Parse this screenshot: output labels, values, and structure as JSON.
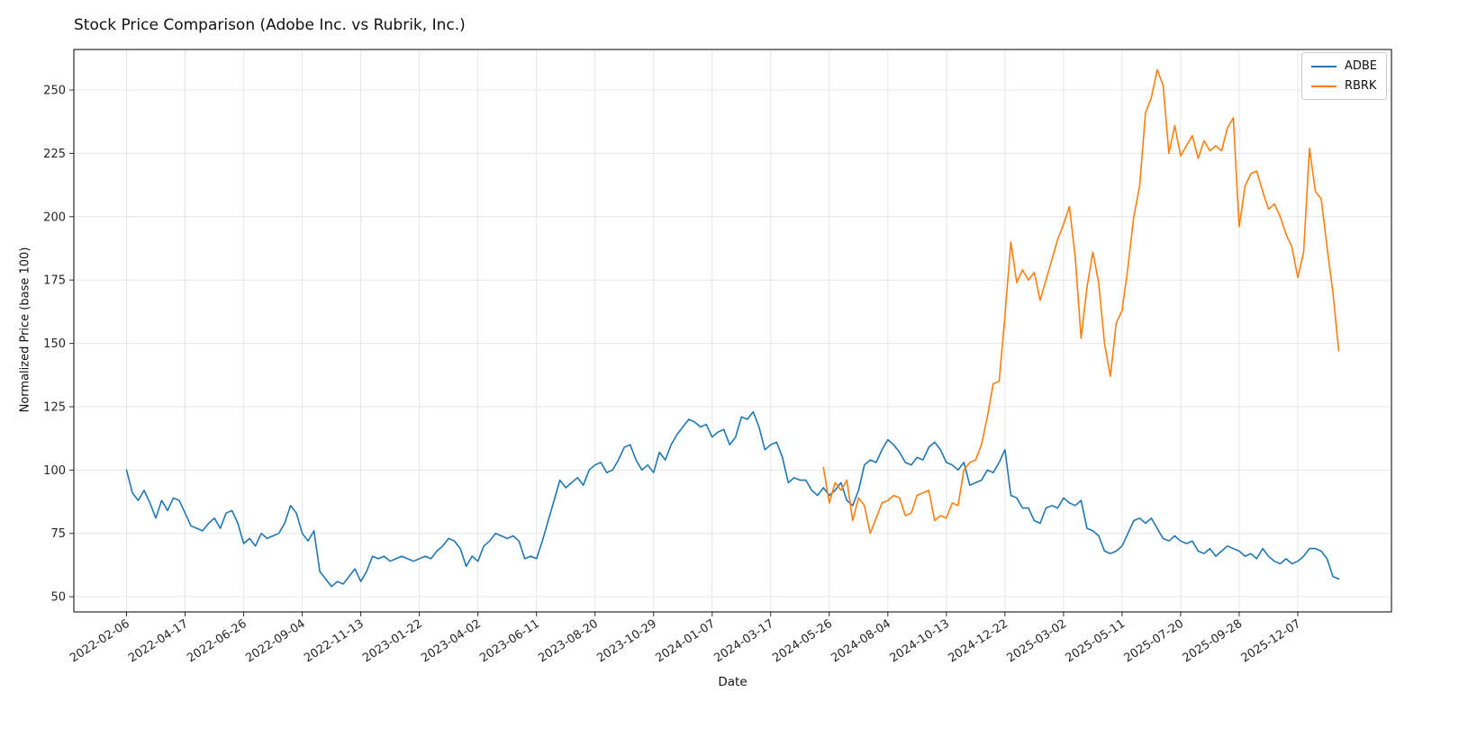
{
  "chart_data": {
    "type": "line",
    "title": "Stock Price Comparison (Adobe Inc. vs Rubrik, Inc.)",
    "xlabel": "Date",
    "ylabel": "Normalized Price (base 100)",
    "x_unit": "weeks_since_start",
    "x_start_date": "2022-02-06",
    "x_tick_interval_weeks": 10,
    "x_tick_labels": [
      "2022-02-06",
      "2022-04-17",
      "2022-06-26",
      "2022-09-04",
      "2022-11-13",
      "2023-01-22",
      "2023-04-02",
      "2023-06-11",
      "2023-08-20",
      "2023-10-29",
      "2024-01-07",
      "2024-03-17",
      "2024-05-26",
      "2024-08-04",
      "2024-10-13",
      "2024-12-22",
      "2025-03-02",
      "2025-05-11",
      "2025-07-20",
      "2025-09-28",
      "2025-12-07"
    ],
    "yticks": [
      50,
      75,
      100,
      125,
      150,
      175,
      200,
      225,
      250
    ],
    "ylim": [
      44,
      266
    ],
    "xlim": [
      -9,
      216
    ],
    "grid": true,
    "legend_position": "upper right",
    "series": [
      {
        "name": "ADBE",
        "color": "#1f77b4",
        "start_week": 0,
        "values": [
          100,
          91,
          88,
          92,
          87,
          81,
          88,
          84,
          89,
          88,
          83,
          78,
          77,
          76,
          79,
          81,
          77,
          83,
          84,
          79,
          71,
          73,
          70,
          75,
          73,
          74,
          75,
          79,
          86,
          83,
          75,
          72,
          76,
          60,
          57,
          54,
          56,
          55,
          58,
          61,
          56,
          60,
          66,
          65,
          66,
          64,
          65,
          66,
          65,
          64,
          65,
          66,
          65,
          68,
          70,
          73,
          72,
          69,
          62,
          66,
          64,
          70,
          72,
          75,
          74,
          73,
          74,
          72,
          65,
          66,
          65,
          72,
          80,
          88,
          96,
          93,
          95,
          97,
          94,
          100,
          102,
          103,
          99,
          100,
          104,
          109,
          110,
          104,
          100,
          102,
          99,
          107,
          104,
          110,
          114,
          117,
          120,
          119,
          117,
          118,
          113,
          115,
          116,
          110,
          113,
          121,
          120,
          123,
          117,
          108,
          110,
          111,
          105,
          95,
          97,
          96,
          96,
          92,
          90,
          93,
          90,
          92,
          95,
          88,
          86,
          92,
          102,
          104,
          103,
          108,
          112,
          110,
          107,
          103,
          102,
          105,
          104,
          109,
          111,
          108,
          103,
          102,
          100,
          103,
          94,
          95,
          96,
          100,
          99,
          103,
          108,
          90,
          89,
          85,
          85,
          80,
          79,
          85,
          86,
          85,
          89,
          87,
          86,
          88,
          77,
          76,
          74,
          68,
          67,
          68,
          70,
          75,
          80,
          81,
          79,
          81,
          77,
          73,
          72,
          74,
          72,
          71,
          72,
          68,
          67,
          69,
          66,
          68,
          70,
          69,
          68,
          66,
          67,
          65,
          69,
          66,
          64,
          63,
          65,
          63,
          64,
          66,
          69,
          69,
          68,
          65,
          58,
          57
        ]
      },
      {
        "name": "RBRK",
        "color": "#ff7f0e",
        "start_week": 119,
        "values": [
          101,
          87,
          95,
          92,
          96,
          80,
          89,
          86,
          75,
          81,
          87,
          88,
          90,
          89,
          82,
          83,
          90,
          91,
          92,
          80,
          82,
          81,
          87,
          86,
          100,
          103,
          104,
          110,
          121,
          134,
          135,
          161,
          190,
          174,
          179,
          175,
          178,
          167,
          175,
          183,
          191,
          197,
          204,
          184,
          152,
          172,
          186,
          174,
          150,
          137,
          158,
          163,
          180,
          200,
          212,
          241,
          247,
          258,
          252,
          225,
          236,
          224,
          228,
          232,
          223,
          230,
          226,
          228,
          226,
          235,
          239,
          196,
          212,
          217,
          218,
          210,
          203,
          205,
          200,
          193,
          188,
          176,
          186,
          227,
          210,
          207,
          188,
          170,
          147
        ]
      }
    ]
  },
  "legend": {
    "items": [
      {
        "label": "ADBE"
      },
      {
        "label": "RBRK"
      }
    ]
  }
}
